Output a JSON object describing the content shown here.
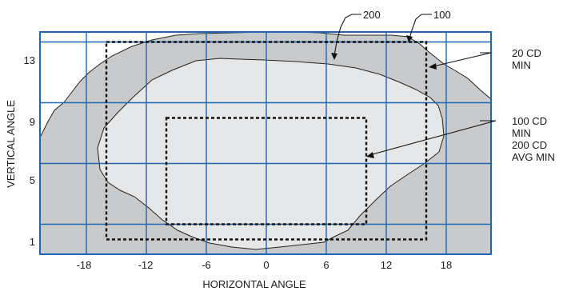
{
  "axes": {
    "xlabel": "HORIZONTAL ANGLE",
    "ylabel": "VERTICAL ANGLE",
    "x_ticks": [
      "-18",
      "-12",
      "-6",
      "0",
      "6",
      "12",
      "18"
    ],
    "y_ticks": [
      "13",
      "9",
      "5",
      "1"
    ],
    "xlim": [
      -22,
      22
    ],
    "ylim": [
      0,
      15.8
    ]
  },
  "contours": [
    {
      "label": "100",
      "fill": "#c9cacc"
    },
    {
      "label": "200",
      "fill": "#e6e7e8"
    }
  ],
  "zones": [
    {
      "label_lines": [
        "20 CD",
        "MIN"
      ],
      "x_range": [
        -16,
        16
      ],
      "y_range": [
        0,
        13
      ]
    },
    {
      "label_lines": [
        "100 CD",
        "MIN",
        "200 CD",
        "AVG MIN"
      ],
      "x_range": [
        -10,
        10
      ],
      "y_range": [
        1,
        8
      ]
    }
  ],
  "colors": {
    "grid": "#1f66b3",
    "outline": "#111111",
    "zone_border": "#111111"
  }
}
